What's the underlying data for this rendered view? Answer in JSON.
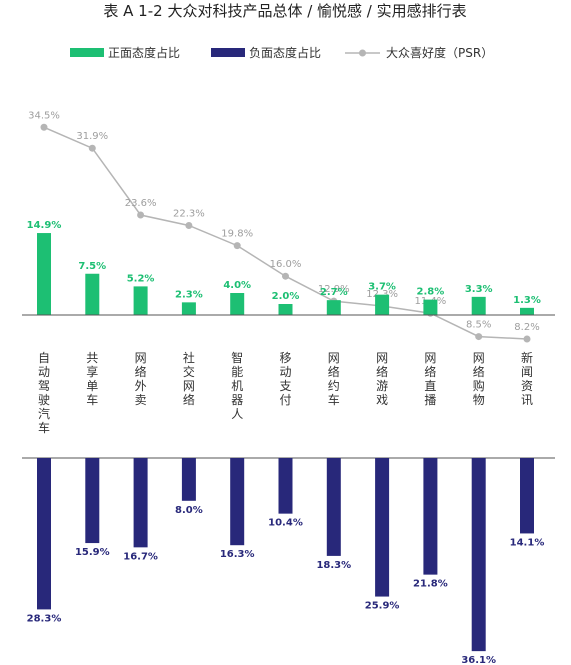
{
  "chart_data": {
    "type": "bar",
    "title": "表 A 1-2 大众对科技产品总体 / 愉悦感 / 实用感排行表",
    "categories": [
      "自动驾驶汽车",
      "共享单车",
      "网络外卖",
      "社交网络",
      "智能机器人",
      "移动支付",
      "网络约车",
      "网络游戏",
      "网络直播",
      "网络购物",
      "新闻资讯"
    ],
    "series": [
      {
        "name": "正面态度占比",
        "type": "bar",
        "color": "#1dbf73",
        "values": [
          14.9,
          7.5,
          5.2,
          2.3,
          4.0,
          2.0,
          2.7,
          3.7,
          2.8,
          3.3,
          1.3
        ],
        "labels": [
          "14.9%",
          "7.5%",
          "5.2%",
          "2.3%",
          "4.0%",
          "2.0%",
          "2.7%",
          "3.7%",
          "2.8%",
          "3.3%",
          "1.3%"
        ]
      },
      {
        "name": "负面态度占比",
        "type": "bar",
        "color": "#28287a",
        "values": [
          28.3,
          15.9,
          16.7,
          8.0,
          16.3,
          10.4,
          18.3,
          25.9,
          21.8,
          36.1,
          14.1
        ],
        "labels": [
          "28.3%",
          "15.9%",
          "16.7%",
          "8.0%",
          "16.3%",
          "10.4%",
          "18.3%",
          "25.9%",
          "21.8%",
          "36.1%",
          "14.1%"
        ]
      },
      {
        "name": "大众喜好度（PSR）",
        "type": "line",
        "color": "#b5b5b5",
        "values": [
          34.5,
          31.9,
          23.6,
          22.3,
          19.8,
          16.0,
          12.9,
          12.3,
          11.4,
          8.5,
          8.2
        ],
        "labels": [
          "34.5%",
          "31.9%",
          "23.6%",
          "22.3%",
          "19.8%",
          "16.0%",
          "12.9%",
          "12.3%",
          "11.4%",
          "8.5%",
          "8.2%"
        ]
      }
    ],
    "legend": "top-center",
    "grid": false
  }
}
